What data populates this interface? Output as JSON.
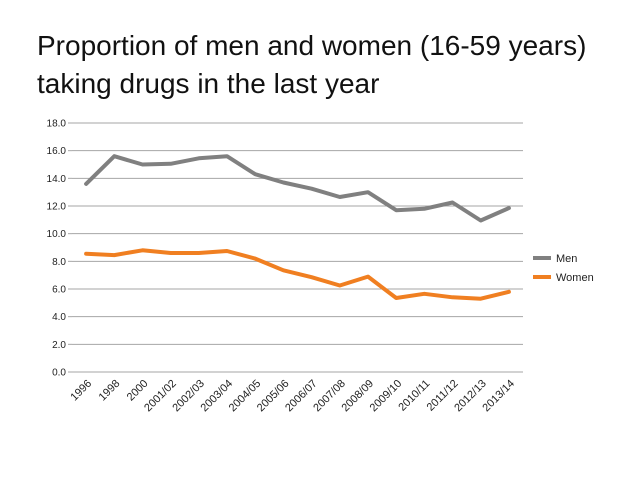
{
  "chart_data": {
    "type": "line",
    "title": "Proportion of men and women (16-59 years) taking drugs in the last year",
    "xlabel": "",
    "ylabel": "",
    "ylim": [
      0,
      18
    ],
    "yticks": [
      "0.0",
      "2.0",
      "4.0",
      "6.0",
      "8.0",
      "10.0",
      "12.0",
      "14.0",
      "16.0",
      "18.0"
    ],
    "ytick_values": [
      0,
      2,
      4,
      6,
      8,
      10,
      12,
      14,
      16,
      18
    ],
    "grid": true,
    "legend_position": "right",
    "categories": [
      "1996",
      "1998",
      "2000",
      "2001/02",
      "2002/03",
      "2003/04",
      "2004/05",
      "2005/06",
      "2006/07",
      "2007/08",
      "2008/09",
      "2009/10",
      "2010/11",
      "2011/12",
      "2012/13",
      "2013/14"
    ],
    "series": [
      {
        "name": "Men",
        "color": "#808080",
        "values": [
          13.6,
          15.6,
          15.0,
          15.05,
          15.45,
          15.6,
          14.3,
          13.7,
          13.25,
          12.65,
          13.0,
          11.7,
          11.8,
          12.25,
          10.95,
          11.85
        ]
      },
      {
        "name": "Women",
        "color": "#F07F21",
        "values": [
          8.55,
          8.45,
          8.8,
          8.6,
          8.6,
          8.75,
          8.2,
          7.35,
          6.85,
          6.25,
          6.9,
          5.35,
          5.65,
          5.4,
          5.3,
          5.8
        ]
      }
    ]
  }
}
